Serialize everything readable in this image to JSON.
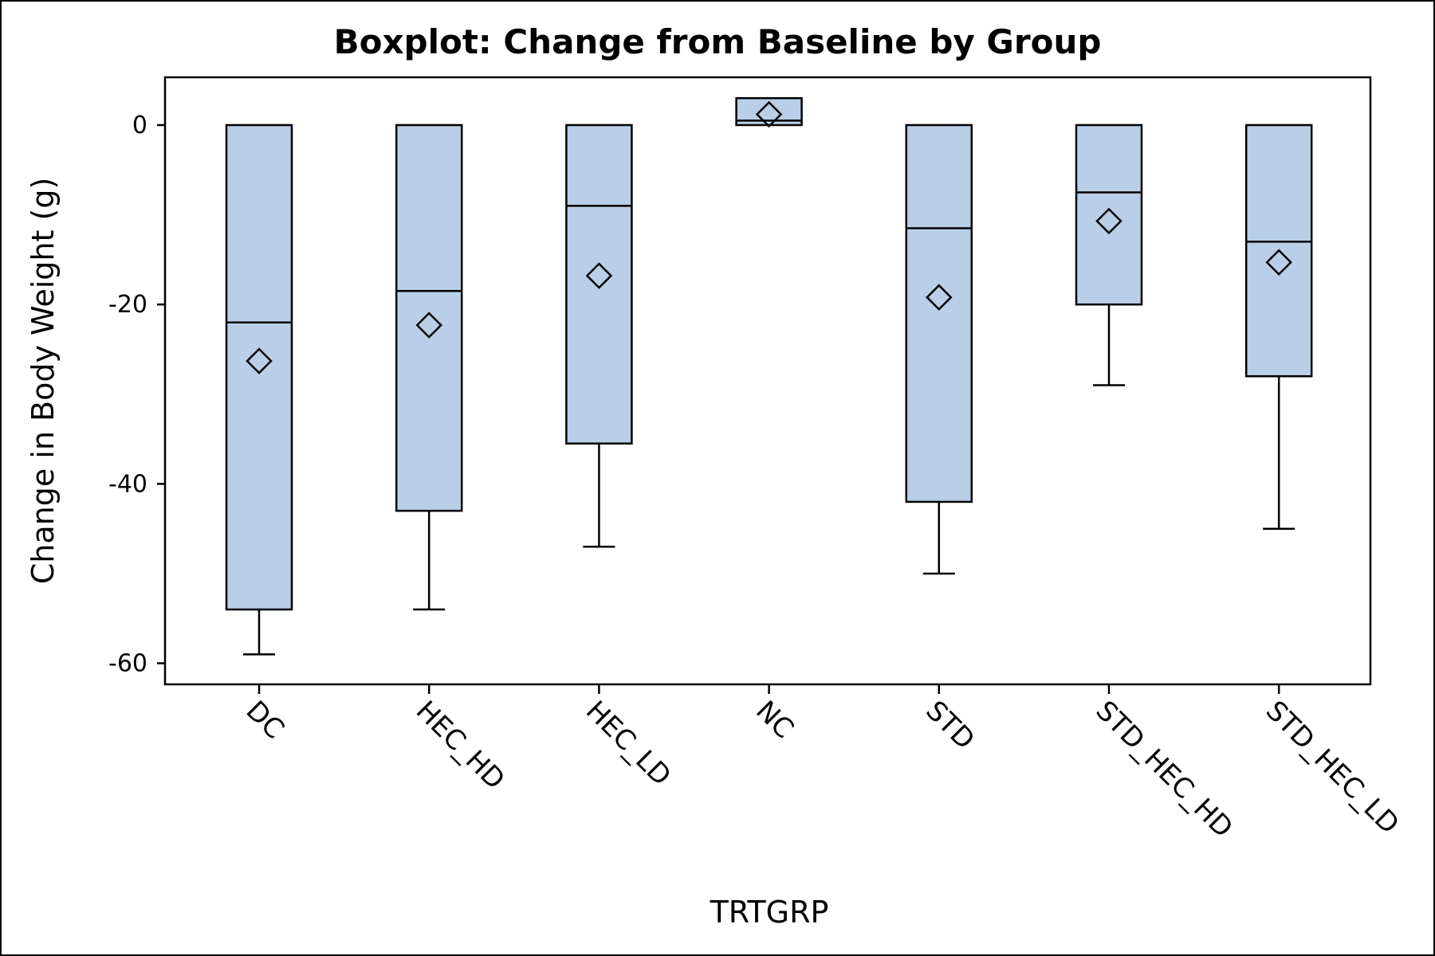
{
  "chart_data": {
    "type": "box",
    "title": "Boxplot: Change from Baseline by Group",
    "xlabel": "TRTGRP",
    "ylabel": "Change in Body Weight (g)",
    "ylim": [
      -62.5,
      5.5
    ],
    "yticks": [
      0,
      -20,
      -40,
      -60
    ],
    "ytick_labels": [
      "0",
      "-20",
      "-40",
      "-60"
    ],
    "grid": false,
    "legend": "none",
    "colors": {
      "box_fill": "#b9cfe7",
      "stroke": "#000000"
    },
    "categories": [
      "DC",
      "HEC_HD",
      "HEC_LD",
      "NC",
      "STD",
      "STD_HEC_HD",
      "STD_HEC_LD"
    ],
    "boxes": [
      {
        "category": "DC",
        "whisker_low": -59,
        "q1": -54,
        "median": -22,
        "q3": 0,
        "whisker_high": 0,
        "mean": -26.3
      },
      {
        "category": "HEC_HD",
        "whisker_low": -54,
        "q1": -43,
        "median": -18.5,
        "q3": 0,
        "whisker_high": 0,
        "mean": -22.3
      },
      {
        "category": "HEC_LD",
        "whisker_low": -47,
        "q1": -35.5,
        "median": -9,
        "q3": 0,
        "whisker_high": 0,
        "mean": -16.8
      },
      {
        "category": "NC",
        "whisker_low": 0,
        "q1": 0,
        "median": 0.5,
        "q3": 3,
        "whisker_high": 3,
        "mean": 1.2
      },
      {
        "category": "STD",
        "whisker_low": -50,
        "q1": -42,
        "median": -11.5,
        "q3": 0,
        "whisker_high": 0,
        "mean": -19.2
      },
      {
        "category": "STD_HEC_HD",
        "whisker_low": -29,
        "q1": -20,
        "median": -7.5,
        "q3": 0,
        "whisker_high": 0,
        "mean": -10.7
      },
      {
        "category": "STD_HEC_LD",
        "whisker_low": -45,
        "q1": -28,
        "median": -13,
        "q3": 0,
        "whisker_high": 0,
        "mean": -15.3
      }
    ]
  }
}
